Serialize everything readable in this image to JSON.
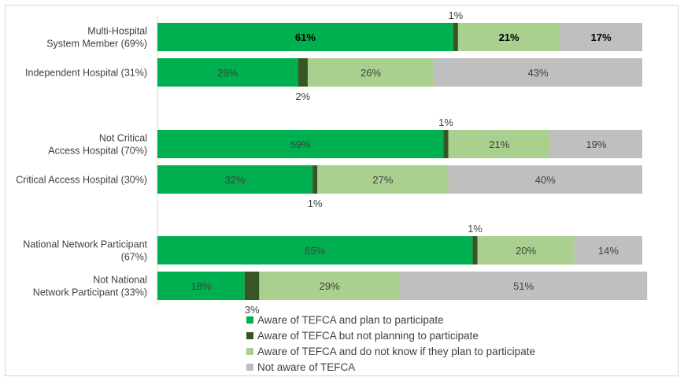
{
  "chart_data": {
    "type": "bar",
    "orientation": "horizontal",
    "stacked": true,
    "xlim": [
      0,
      100
    ],
    "grid": false,
    "legend_position": "bottom",
    "series": [
      {
        "name": "Aware of TEFCA and plan to participate",
        "color": "#00b050"
      },
      {
        "name": "Aware of TEFCA but not planning to participate",
        "color": "#375623"
      },
      {
        "name": "Aware of TEFCA and do not know if they plan to participate",
        "color": "#a9d08e"
      },
      {
        "name": "Not aware of TEFCA",
        "color": "#bfbfbf"
      }
    ],
    "bars": [
      {
        "label_lines": [
          "Multi-Hospital",
          "System Member (69%)"
        ],
        "values": [
          61,
          1,
          21,
          17
        ],
        "labels": [
          "61%",
          "1%",
          "21%",
          "17%"
        ]
      },
      {
        "label_lines": [
          "Independent Hospital (31%)"
        ],
        "values": [
          29,
          2,
          26,
          43
        ],
        "labels": [
          "29%",
          "2%",
          "26%",
          "43%"
        ]
      },
      {
        "label_lines": [
          "Not Critical",
          "Access Hospital (70%)"
        ],
        "values": [
          59,
          1,
          21,
          19
        ],
        "labels": [
          "59%",
          "1%",
          "21%",
          "19%"
        ]
      },
      {
        "label_lines": [
          "Critical Access Hospital (30%)"
        ],
        "values": [
          32,
          1,
          27,
          40
        ],
        "labels": [
          "32%",
          "1%",
          "27%",
          "40%"
        ]
      },
      {
        "label_lines": [
          "National Network Participant",
          "(67%)"
        ],
        "values": [
          65,
          1,
          20,
          14
        ],
        "labels": [
          "65%",
          "1%",
          "20%",
          "14%"
        ]
      },
      {
        "label_lines": [
          "Not National",
          "Network Participant (33%)"
        ],
        "values": [
          18,
          3,
          29,
          51
        ],
        "labels": [
          "18%",
          "3%",
          "29%",
          "51%"
        ]
      }
    ]
  }
}
